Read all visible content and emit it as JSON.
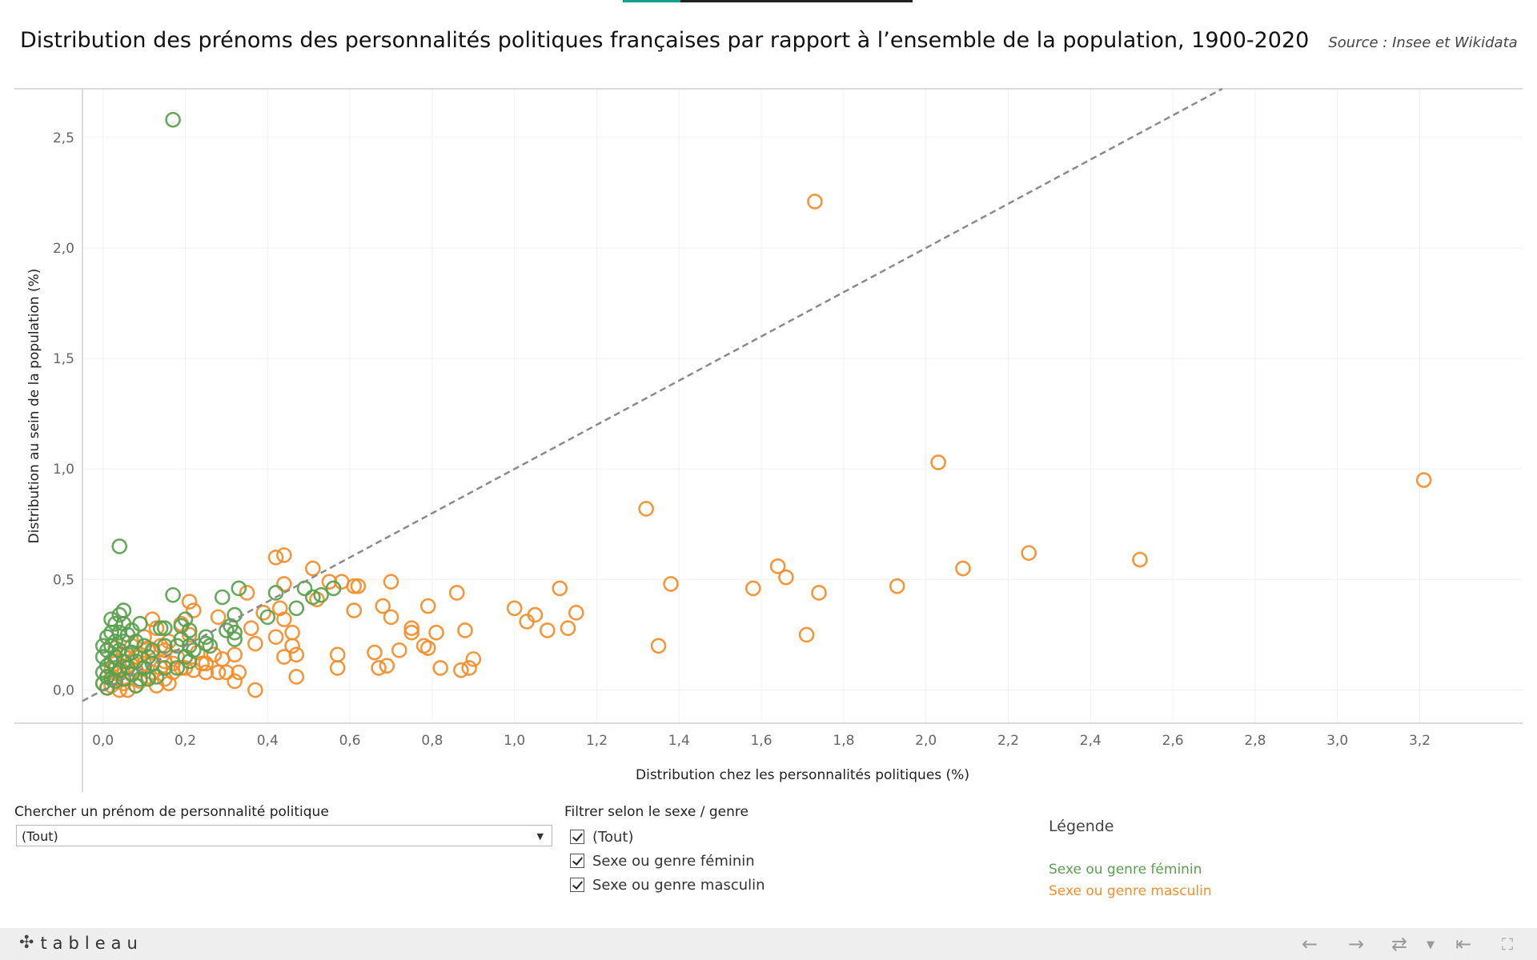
{
  "title": "Distribution des prénoms des personnalités politiques françaises par rapport à l’ensemble de la population, 1900-2020",
  "source": "Source : Insee et Wikidata",
  "search": {
    "label": "Chercher un prénom de personnalité politique",
    "value": "(Tout)"
  },
  "filter": {
    "label": "Filtrer selon le sexe / genre",
    "options": [
      "(Tout)",
      "Sexe ou genre féminin",
      "Sexe ou genre masculin"
    ]
  },
  "legend": {
    "title": "Légende",
    "items": [
      {
        "label": "Sexe ou genre féminin",
        "color": "#59a14f"
      },
      {
        "label": "Sexe ou genre masculin",
        "color": "#f28e2b"
      }
    ]
  },
  "footer": {
    "logo": "tableau",
    "logo_icon": "tableau-cross-icon",
    "nav_icons": [
      "undo-icon",
      "redo-icon",
      "revert-icon",
      "dropdown-icon",
      "reset-icon",
      "fullscreen-icon"
    ]
  },
  "chart_data": {
    "type": "scatter",
    "title": "Distribution des prénoms des personnalités politiques françaises par rapport à l’ensemble de la population, 1900-2020",
    "xlabel": "Distribution chez les personnalités politiques (%)",
    "ylabel": "Distribution au sein de la population (%)",
    "xlim": [
      -0.05,
      3.45
    ],
    "ylim": [
      -0.15,
      2.72
    ],
    "xticks": [
      "0,0",
      "0,2",
      "0,4",
      "0,6",
      "0,8",
      "1,0",
      "1,2",
      "1,4",
      "1,6",
      "1,8",
      "2,0",
      "2,2",
      "2,4",
      "2,6",
      "2,8",
      "3,0",
      "3,2"
    ],
    "xtick_values": [
      0,
      0.2,
      0.4,
      0.6,
      0.8,
      1.0,
      1.2,
      1.4,
      1.6,
      1.8,
      2.0,
      2.2,
      2.4,
      2.6,
      2.8,
      3.0,
      3.2
    ],
    "yticks": [
      "0,0",
      "0,5",
      "1,0",
      "1,5",
      "2,0",
      "2,5"
    ],
    "ytick_values": [
      0,
      0.5,
      1.0,
      1.5,
      2.0,
      2.5
    ],
    "grid": true,
    "reference_line": {
      "label": "y = x",
      "from": [
        -0.05,
        -0.05
      ],
      "to": [
        2.72,
        2.72
      ],
      "style": "dashed"
    },
    "series": [
      {
        "name": "Sexe ou genre masculin",
        "color": "#f28e2b",
        "points": [
          [
            3.21,
            0.95
          ],
          [
            2.52,
            0.59
          ],
          [
            2.25,
            0.62
          ],
          [
            2.09,
            0.55
          ],
          [
            2.03,
            1.03
          ],
          [
            1.93,
            0.47
          ],
          [
            1.73,
            2.21
          ],
          [
            1.74,
            0.44
          ],
          [
            1.71,
            0.25
          ],
          [
            1.66,
            0.51
          ],
          [
            1.64,
            0.56
          ],
          [
            1.58,
            0.46
          ],
          [
            1.38,
            0.48
          ],
          [
            1.35,
            0.2
          ],
          [
            1.32,
            0.82
          ],
          [
            1.15,
            0.35
          ],
          [
            1.13,
            0.28
          ],
          [
            1.11,
            0.46
          ],
          [
            1.08,
            0.27
          ],
          [
            1.05,
            0.34
          ],
          [
            1.03,
            0.31
          ],
          [
            1.0,
            0.37
          ],
          [
            0.9,
            0.14
          ],
          [
            0.89,
            0.1
          ],
          [
            0.88,
            0.27
          ],
          [
            0.87,
            0.09
          ],
          [
            0.86,
            0.44
          ],
          [
            0.81,
            0.26
          ],
          [
            0.82,
            0.1
          ],
          [
            0.79,
            0.38
          ],
          [
            0.79,
            0.19
          ],
          [
            0.78,
            0.2
          ],
          [
            0.75,
            0.26
          ],
          [
            0.75,
            0.28
          ],
          [
            0.72,
            0.18
          ],
          [
            0.7,
            0.49
          ],
          [
            0.7,
            0.33
          ],
          [
            0.69,
            0.11
          ],
          [
            0.68,
            0.38
          ],
          [
            0.67,
            0.1
          ],
          [
            0.66,
            0.17
          ],
          [
            0.62,
            0.47
          ],
          [
            0.61,
            0.47
          ],
          [
            0.61,
            0.36
          ],
          [
            0.57,
            0.1
          ],
          [
            0.57,
            0.16
          ],
          [
            0.58,
            0.49
          ],
          [
            0.55,
            0.49
          ],
          [
            0.51,
            0.55
          ],
          [
            0.52,
            0.41
          ],
          [
            0.47,
            0.06
          ],
          [
            0.47,
            0.16
          ],
          [
            0.46,
            0.2
          ],
          [
            0.46,
            0.26
          ],
          [
            0.44,
            0.61
          ],
          [
            0.44,
            0.48
          ],
          [
            0.44,
            0.32
          ],
          [
            0.44,
            0.15
          ],
          [
            0.42,
            0.6
          ],
          [
            0.42,
            0.24
          ],
          [
            0.43,
            0.37
          ],
          [
            0.39,
            0.35
          ],
          [
            0.37,
            0.21
          ],
          [
            0.37,
            0.0
          ],
          [
            0.36,
            0.28
          ],
          [
            0.35,
            0.44
          ],
          [
            0.33,
            0.08
          ],
          [
            0.32,
            0.16
          ],
          [
            0.32,
            0.04
          ],
          [
            0.3,
            0.08
          ],
          [
            0.29,
            0.14
          ],
          [
            0.28,
            0.33
          ],
          [
            0.28,
            0.08
          ],
          [
            0.27,
            0.16
          ],
          [
            0.25,
            0.08
          ],
          [
            0.24,
            0.12
          ],
          [
            0.23,
            0.17
          ],
          [
            0.22,
            0.36
          ],
          [
            0.21,
            0.4
          ],
          [
            0.21,
            0.25
          ],
          [
            0.2,
            0.1
          ],
          [
            0.19,
            0.3
          ],
          [
            0.18,
            0.15
          ],
          [
            0.17,
            0.08
          ],
          [
            0.16,
            0.22
          ],
          [
            0.15,
            0.13
          ],
          [
            0.15,
            0.05
          ],
          [
            0.14,
            0.1
          ],
          [
            0.13,
            0.28
          ],
          [
            0.13,
            0.02
          ],
          [
            0.12,
            0.17
          ],
          [
            0.12,
            0.32
          ],
          [
            0.11,
            0.06
          ],
          [
            0.1,
            0.12
          ],
          [
            0.1,
            0.24
          ],
          [
            0.09,
            0.04
          ],
          [
            0.09,
            0.16
          ],
          [
            0.08,
            0.09
          ],
          [
            0.08,
            0.02
          ],
          [
            0.07,
            0.13
          ],
          [
            0.07,
            0.2
          ],
          [
            0.06,
            0.05
          ],
          [
            0.06,
            0.11
          ],
          [
            0.05,
            0.03
          ],
          [
            0.05,
            0.16
          ],
          [
            0.04,
            0.08
          ],
          [
            0.04,
            0.0
          ],
          [
            0.03,
            0.12
          ],
          [
            0.03,
            0.05
          ],
          [
            0.02,
            0.02
          ],
          [
            0.02,
            0.09
          ],
          [
            0.01,
            0.01
          ],
          [
            0.01,
            0.06
          ],
          [
            0.0,
            0.03
          ],
          [
            0.11,
            0.19
          ],
          [
            0.14,
            0.2
          ],
          [
            0.17,
            0.12
          ],
          [
            0.19,
            0.1
          ],
          [
            0.22,
            0.09
          ],
          [
            0.06,
            0.0
          ],
          [
            0.16,
            0.03
          ],
          [
            0.25,
            0.12
          ],
          [
            0.12,
            0.08
          ],
          [
            0.08,
            0.15
          ],
          [
            0.15,
            0.18
          ],
          [
            0.03,
            0.19
          ]
        ]
      },
      {
        "name": "Sexe ou genre féminin",
        "color": "#59a14f",
        "points": [
          [
            0.17,
            2.58
          ],
          [
            0.04,
            0.65
          ],
          [
            0.17,
            0.43
          ],
          [
            0.29,
            0.42
          ],
          [
            0.33,
            0.46
          ],
          [
            0.42,
            0.44
          ],
          [
            0.49,
            0.46
          ],
          [
            0.51,
            0.42
          ],
          [
            0.53,
            0.43
          ],
          [
            0.56,
            0.46
          ],
          [
            0.47,
            0.37
          ],
          [
            0.4,
            0.33
          ],
          [
            0.32,
            0.34
          ],
          [
            0.31,
            0.29
          ],
          [
            0.32,
            0.26
          ],
          [
            0.3,
            0.27
          ],
          [
            0.32,
            0.23
          ],
          [
            0.25,
            0.24
          ],
          [
            0.25,
            0.21
          ],
          [
            0.26,
            0.2
          ],
          [
            0.21,
            0.27
          ],
          [
            0.19,
            0.29
          ],
          [
            0.2,
            0.32
          ],
          [
            0.19,
            0.23
          ],
          [
            0.21,
            0.2
          ],
          [
            0.22,
            0.18
          ],
          [
            0.21,
            0.13
          ],
          [
            0.2,
            0.15
          ],
          [
            0.18,
            0.2
          ],
          [
            0.18,
            0.1
          ],
          [
            0.14,
            0.28
          ],
          [
            0.15,
            0.28
          ],
          [
            0.15,
            0.2
          ],
          [
            0.12,
            0.18
          ],
          [
            0.11,
            0.15
          ],
          [
            0.1,
            0.2
          ],
          [
            0.09,
            0.3
          ],
          [
            0.08,
            0.22
          ],
          [
            0.08,
            0.13
          ],
          [
            0.07,
            0.17
          ],
          [
            0.06,
            0.25
          ],
          [
            0.05,
            0.36
          ],
          [
            0.05,
            0.3
          ],
          [
            0.05,
            0.22
          ],
          [
            0.04,
            0.34
          ],
          [
            0.04,
            0.26
          ],
          [
            0.04,
            0.18
          ],
          [
            0.03,
            0.3
          ],
          [
            0.03,
            0.22
          ],
          [
            0.03,
            0.15
          ],
          [
            0.02,
            0.32
          ],
          [
            0.02,
            0.26
          ],
          [
            0.02,
            0.2
          ],
          [
            0.02,
            0.13
          ],
          [
            0.01,
            0.24
          ],
          [
            0.01,
            0.18
          ],
          [
            0.01,
            0.11
          ],
          [
            0.01,
            0.06
          ],
          [
            0.0,
            0.15
          ],
          [
            0.0,
            0.08
          ],
          [
            0.0,
            0.03
          ],
          [
            0.06,
            0.1
          ],
          [
            0.05,
            0.05
          ],
          [
            0.04,
            0.09
          ],
          [
            0.03,
            0.04
          ],
          [
            0.07,
            0.07
          ],
          [
            0.09,
            0.05
          ],
          [
            0.1,
            0.1
          ],
          [
            0.12,
            0.12
          ],
          [
            0.13,
            0.06
          ],
          [
            0.08,
            0.02
          ],
          [
            0.06,
            0.16
          ],
          [
            0.02,
            0.05
          ],
          [
            0.01,
            0.01
          ],
          [
            0.15,
            0.1
          ],
          [
            0.11,
            0.05
          ],
          [
            0.07,
            0.27
          ],
          [
            0.0,
            0.2
          ],
          [
            0.03,
            0.1
          ],
          [
            0.05,
            0.13
          ]
        ]
      }
    ]
  }
}
